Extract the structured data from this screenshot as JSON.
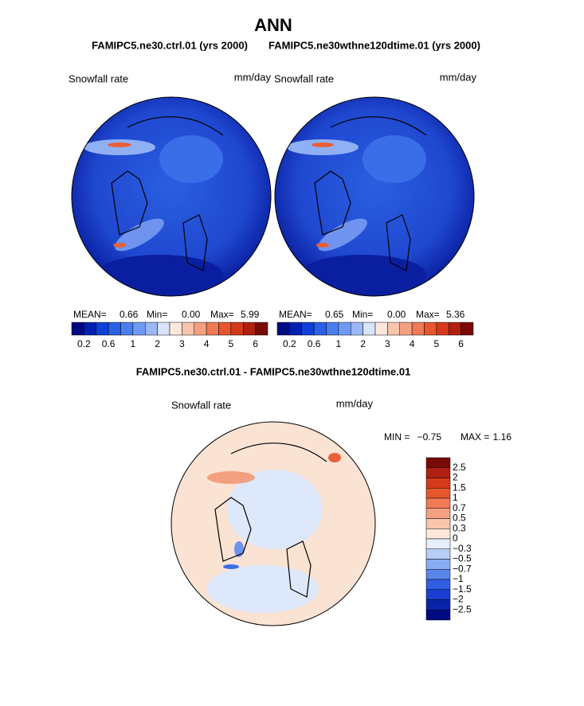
{
  "header": {
    "title": "ANN",
    "left_case": "FAMIPC5.ne30.ctrl.01 (yrs 2000)",
    "right_case": "FAMIPC5.ne30wthne120dtime.01 (yrs 2000)"
  },
  "panels": [
    {
      "variable": "Snowfall rate",
      "units": "mm/day",
      "mean_label": "MEAN=",
      "mean": "0.66",
      "min_label": "Min=",
      "min": "0.00",
      "max_label": "Max=",
      "max": "5.99",
      "colorbar_labels": [
        "0.2",
        "0.6",
        "1",
        "2",
        "3",
        "4",
        "5",
        "6"
      ]
    },
    {
      "variable": "Snowfall rate",
      "units": "mm/day",
      "mean_label": "MEAN=",
      "mean": "0.65",
      "min_label": "Min=",
      "min": "0.00",
      "max_label": "Max=",
      "max": "5.36",
      "colorbar_labels": [
        "0.2",
        "0.6",
        "1",
        "2",
        "3",
        "4",
        "5",
        "6"
      ]
    }
  ],
  "difference": {
    "title": "FAMIPC5.ne30.ctrl.01 - FAMIPC5.ne30wthne120dtime.01",
    "variable": "Snowfall rate",
    "units": "mm/day",
    "min_label": "MIN =",
    "min": "−0.75",
    "max_label": "MAX =",
    "max": "1.16",
    "colorbar_labels": [
      "2.5",
      "2",
      "1.5",
      "1",
      "0.7",
      "0.5",
      "0.3",
      "0",
      "−0.3",
      "−0.5",
      "−0.7",
      "−1",
      "−1.5",
      "−2",
      "−2.5"
    ]
  }
}
